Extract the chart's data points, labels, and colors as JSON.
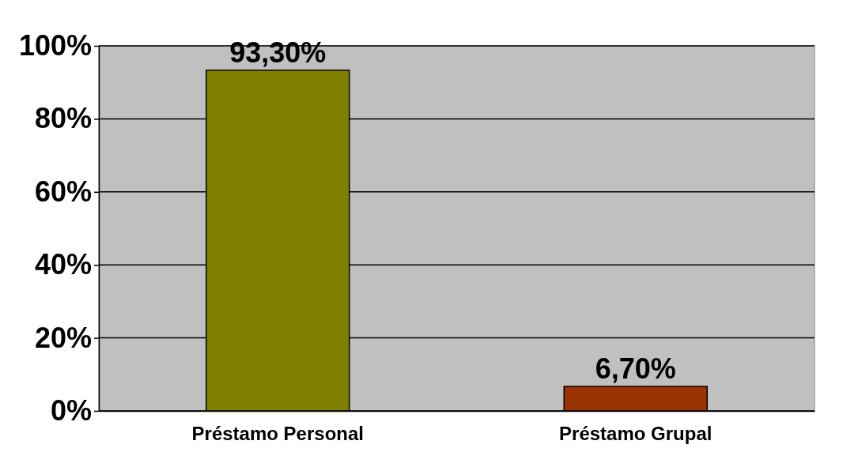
{
  "chart_data": {
    "type": "bar",
    "categories": [
      "Préstamo Personal",
      "Préstamo Grupal"
    ],
    "values": [
      93.3,
      6.7
    ],
    "colors": [
      "#808000",
      "#993300"
    ],
    "value_labels": [
      "93,30%",
      "6,70%"
    ],
    "ylim": [
      0,
      100
    ],
    "yticks": [
      {
        "value": 0,
        "label": "0%"
      },
      {
        "value": 20,
        "label": "20%"
      },
      {
        "value": 40,
        "label": "40%"
      },
      {
        "value": 60,
        "label": "60%"
      },
      {
        "value": 80,
        "label": "80%"
      },
      {
        "value": 100,
        "label": "100%"
      }
    ],
    "grid": "y"
  }
}
